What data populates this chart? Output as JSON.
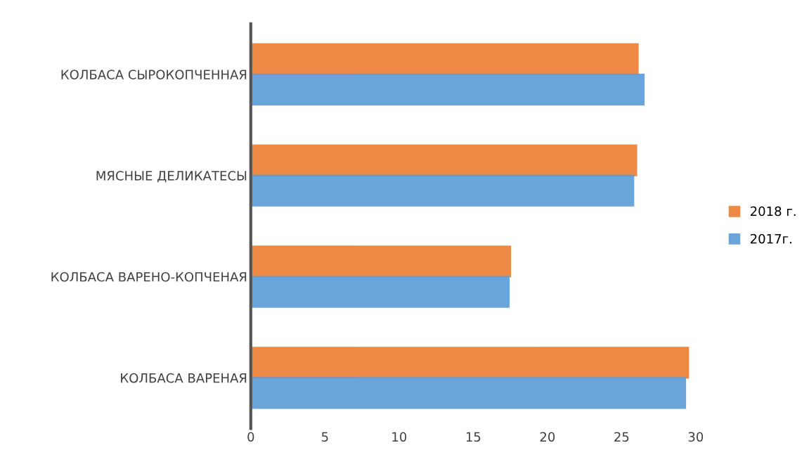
{
  "chart_data": {
    "type": "bar",
    "orientation": "horizontal",
    "categories": [
      "КОЛБАСА СЫРОКОПЧЕННАЯ",
      "МЯСНЫЕ ДЕЛИКАТЕСЫ",
      "КОЛБАСА ВАРЕНО-КОПЧЕНАЯ",
      "КОЛБАСА ВАРЕНАЯ"
    ],
    "series": [
      {
        "name": "2018 г.",
        "color": "#ed7d31",
        "values": [
          26.1,
          26.0,
          17.5,
          29.5
        ]
      },
      {
        "name": "2017г.",
        "color": "#5b9bd5",
        "values": [
          26.5,
          25.8,
          17.4,
          29.3
        ]
      }
    ],
    "xlim": [
      0,
      30
    ],
    "xticks": [
      0,
      5,
      10,
      15,
      20,
      25,
      30
    ],
    "grid": false,
    "legend": "right"
  }
}
